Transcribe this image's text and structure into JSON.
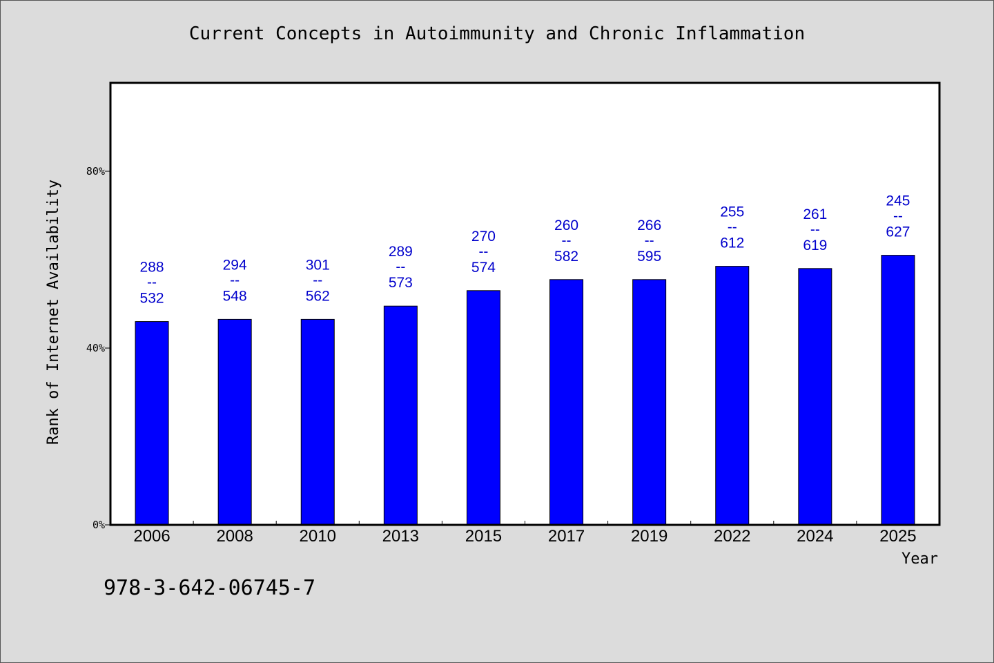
{
  "chart_data": {
    "type": "bar",
    "title": "Current Concepts in Autoimmunity and Chronic Inflammation",
    "xlabel": "Year",
    "ylabel": "Rank of Internet Availability",
    "categories": [
      "2006",
      "2008",
      "2010",
      "2013",
      "2015",
      "2017",
      "2019",
      "2022",
      "2024",
      "2025"
    ],
    "values": [
      46,
      46.5,
      46.5,
      49.5,
      53,
      55.5,
      55.5,
      58.5,
      58,
      61
    ],
    "bar_labels": [
      {
        "top": "288",
        "sep": "--",
        "bottom": "532"
      },
      {
        "top": "294",
        "sep": "--",
        "bottom": "548"
      },
      {
        "top": "301",
        "sep": "--",
        "bottom": "562"
      },
      {
        "top": "289",
        "sep": "--",
        "bottom": "573"
      },
      {
        "top": "270",
        "sep": "--",
        "bottom": "574"
      },
      {
        "top": "260",
        "sep": "--",
        "bottom": "582"
      },
      {
        "top": "266",
        "sep": "--",
        "bottom": "595"
      },
      {
        "top": "255",
        "sep": "--",
        "bottom": "612"
      },
      {
        "top": "261",
        "sep": "--",
        "bottom": "619"
      },
      {
        "top": "245",
        "sep": "--",
        "bottom": "627"
      }
    ],
    "ylim": [
      0,
      100
    ],
    "yticks": [
      0,
      40,
      80
    ],
    "ytick_labels": [
      "0%",
      "40%",
      "80%"
    ],
    "grid": false,
    "colors": {
      "bar": "#0000ff",
      "bar_label": "#0000cc",
      "plot_bg": "#ffffff",
      "page_bg": "#dcdcdc"
    }
  },
  "footer": {
    "isbn": "978-3-642-06745-7"
  }
}
